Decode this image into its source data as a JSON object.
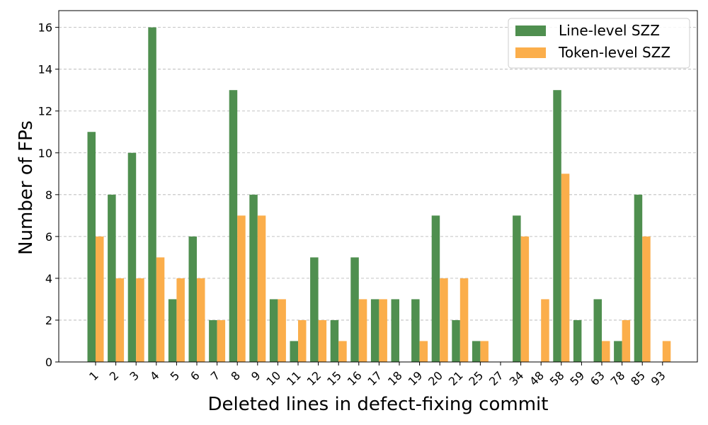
{
  "chart_data": {
    "type": "bar",
    "title": "",
    "xlabel": "Deleted lines in defect-fixing commit",
    "ylabel": "Number of FPs",
    "ylim": [
      0,
      16.8
    ],
    "yticks": [
      0,
      2,
      4,
      6,
      8,
      10,
      12,
      14,
      16
    ],
    "grid": "y-dashed",
    "legend_position": "top-right",
    "categories": [
      "1",
      "2",
      "3",
      "4",
      "5",
      "6",
      "7",
      "8",
      "9",
      "10",
      "11",
      "12",
      "15",
      "16",
      "17",
      "18",
      "19",
      "20",
      "21",
      "25",
      "27",
      "34",
      "48",
      "58",
      "59",
      "63",
      "78",
      "85",
      "93"
    ],
    "series": [
      {
        "name": "Line-level SZZ",
        "color": "#4f8f4f",
        "values": [
          11,
          8,
          10,
          16,
          3,
          6,
          2,
          13,
          8,
          3,
          1,
          5,
          2,
          5,
          3,
          3,
          3,
          7,
          2,
          1,
          0,
          7,
          0,
          13,
          2,
          3,
          1,
          8,
          0
        ]
      },
      {
        "name": "Token-level SZZ",
        "color": "#fbae4b",
        "values": [
          6,
          4,
          4,
          5,
          4,
          4,
          2,
          7,
          7,
          3,
          2,
          2,
          1,
          3,
          3,
          0,
          1,
          4,
          4,
          1,
          0,
          6,
          3,
          9,
          0,
          1,
          2,
          6,
          1
        ]
      }
    ]
  }
}
